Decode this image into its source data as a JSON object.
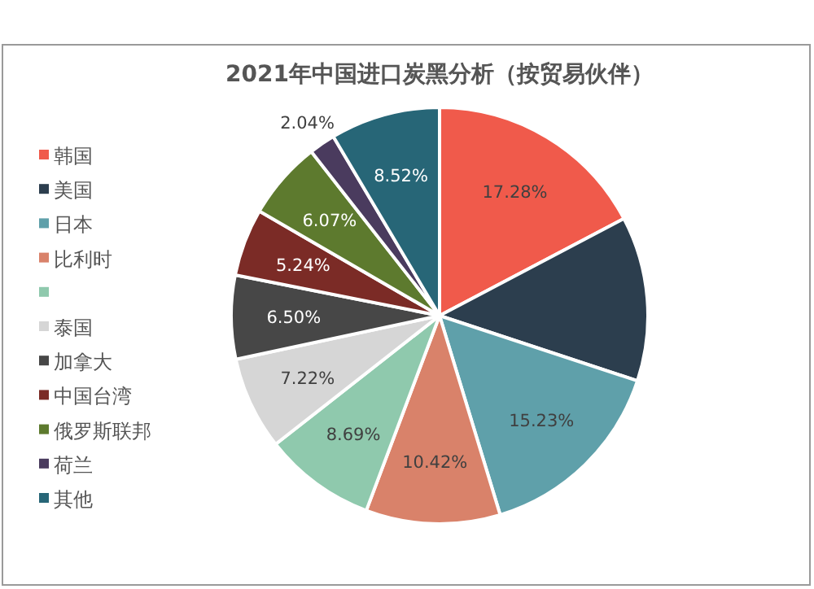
{
  "chart_data": {
    "type": "pie",
    "title": "2021年中国进口炭黑分析（按贸易伙伴）",
    "categories": [
      "韩国",
      "美国",
      "日本",
      "比利时",
      null,
      "泰国",
      "加拿大",
      "中国台湾",
      "俄罗斯联邦",
      "荷兰",
      "其他"
    ],
    "values": [
      17.28,
      12.79,
      15.23,
      10.42,
      8.69,
      7.22,
      6.5,
      5.24,
      6.07,
      2.04,
      8.52
    ],
    "value_labels": [
      "17.28%",
      null,
      "15.23%",
      "10.42%",
      "8.69%",
      "7.22%",
      "6.50%",
      "5.24%",
      "6.07%",
      "2.04%",
      "8.52%"
    ],
    "colors": [
      "#f05a4b",
      "#2c3e4e",
      "#5fa0aa",
      "#d9826a",
      "#8fc9ad",
      "#d6d6d6",
      "#474747",
      "#7b2b26",
      "#5d7a2e",
      "#4a3b5e",
      "#276677"
    ],
    "legend": "left"
  }
}
